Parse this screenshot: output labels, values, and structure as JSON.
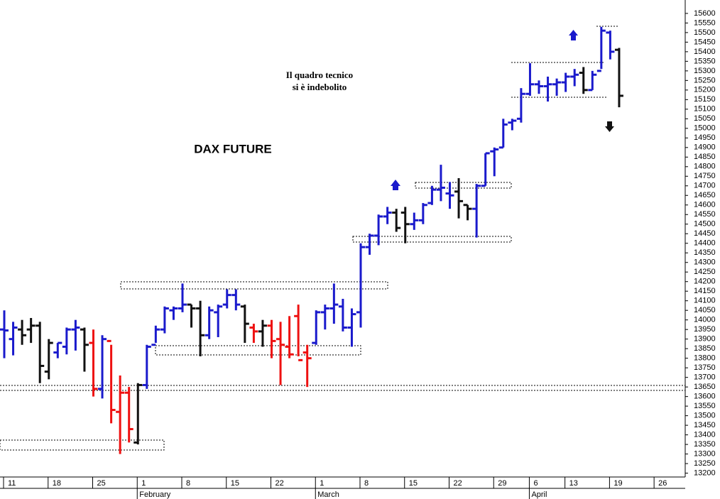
{
  "chart_data": {
    "type": "ohlc",
    "title": "DAX FUTURE",
    "annotation": [
      "Il quadro tecnico",
      "si è indebolito"
    ],
    "categories": [
      "11",
      null,
      null,
      null,
      null,
      "18",
      null,
      null,
      null,
      null,
      "25",
      null,
      null,
      null,
      null,
      "1",
      null,
      null,
      null,
      null,
      "8",
      null,
      null,
      null,
      null,
      "15",
      null,
      null,
      null,
      null,
      "22",
      null,
      null,
      null,
      null,
      "1",
      null,
      null,
      null,
      null,
      "8",
      null,
      null,
      null,
      null,
      "15",
      null,
      null,
      null,
      null,
      "22",
      null,
      null,
      null,
      null,
      "29",
      null,
      null,
      null,
      "6",
      null,
      null,
      null,
      "13",
      null,
      null,
      null,
      null,
      "19",
      null,
      null,
      null,
      null,
      "26",
      null,
      null,
      null,
      null
    ],
    "months": [
      "February",
      "March",
      "April"
    ],
    "open": [
      13950,
      13900,
      13950,
      13950,
      13970,
      13730,
      13830,
      13860,
      13950,
      13950,
      13880,
      13640,
      13890,
      13520,
      13620,
      13360,
      13660,
      13870,
      13950,
      14050,
      14060,
      14080,
      14060,
      13920,
      14040,
      14080,
      14130,
      14070,
      13960,
      13940,
      13970,
      13900,
      13860,
      14020,
      13830,
      13880,
      14040,
      14060,
      14070,
      13960,
      14040,
      14380,
      14440,
      14540,
      14560,
      14560,
      14500,
      14520,
      14610,
      14680,
      14660,
      14670,
      14600,
      14580,
      14700,
      14880,
      14900,
      15030,
      15050,
      15180,
      15230,
      15220,
      15230,
      15240,
      15270,
      15290,
      15200,
      15300,
      15500,
      15410,
      null,
      null,
      null,
      null,
      null,
      null,
      null,
      null
    ],
    "high": [
      14050,
      13990,
      14000,
      14010,
      13990,
      13900,
      13880,
      13960,
      14000,
      13960,
      13950,
      13920,
      13870,
      13710,
      13650,
      13670,
      13870,
      13970,
      14070,
      14070,
      14190,
      14080,
      14100,
      14070,
      14080,
      14160,
      14160,
      14080,
      13980,
      14000,
      14000,
      13990,
      14020,
      14080,
      13870,
      14050,
      14080,
      14190,
      14110,
      14060,
      14400,
      14450,
      14550,
      14590,
      14580,
      14590,
      14560,
      14610,
      14700,
      14810,
      14720,
      14740,
      14600,
      14710,
      14870,
      14900,
      15050,
      15050,
      15210,
      15340,
      15250,
      15270,
      15260,
      15290,
      15310,
      15320,
      15300,
      15530,
      15510,
      15420,
      null,
      null,
      null,
      null,
      null,
      null,
      null,
      null
    ],
    "low": [
      13800,
      13815,
      13870,
      13880,
      13670,
      13690,
      13800,
      13820,
      13840,
      13730,
      13600,
      13590,
      13460,
      13300,
      13360,
      13350,
      13640,
      13880,
      13930,
      14000,
      14040,
      13960,
      13810,
      13900,
      13910,
      14060,
      14050,
      13880,
      13880,
      13860,
      13800,
      13660,
      13800,
      13810,
      13650,
      13870,
      13950,
      13980,
      13940,
      13860,
      13960,
      14340,
      14390,
      14500,
      14460,
      14400,
      14470,
      14500,
      14600,
      14620,
      14580,
      14530,
      14520,
      14430,
      14700,
      14750,
      14900,
      14990,
      15030,
      15170,
      15180,
      15140,
      15170,
      15190,
      15220,
      15180,
      15200,
      15310,
      15360,
      15110,
      null,
      null,
      null,
      null,
      null,
      null,
      null,
      null
    ],
    "close": [
      13945,
      13960,
      13920,
      13970,
      13760,
      13880,
      13880,
      13950,
      13960,
      13870,
      13640,
      13900,
      13530,
      13620,
      13430,
      13660,
      13860,
      13950,
      14060,
      14060,
      14080,
      14060,
      13920,
      14050,
      14070,
      14130,
      14080,
      13980,
      13940,
      13970,
      13890,
      13870,
      13820,
      13790,
      13800,
      14040,
      14060,
      14080,
      13960,
      14030,
      14380,
      14440,
      14540,
      14560,
      14480,
      14500,
      14520,
      14600,
      14680,
      14690,
      14650,
      14620,
      14580,
      14700,
      14870,
      14890,
      15020,
      15040,
      15180,
      15230,
      15220,
      15230,
      15240,
      15270,
      15280,
      15200,
      15280,
      15510,
      15400,
      15170,
      null,
      null,
      null,
      null,
      null,
      null,
      null,
      null
    ],
    "colors": [
      "#1a1acc",
      "#1a1acc",
      "#111111",
      "#111111",
      "#111111",
      "#111111",
      "#1a1acc",
      "#1a1acc",
      "#1a1acc",
      "#111111",
      "#ee1111",
      "#1a1acc",
      "#ee1111",
      "#ee1111",
      "#ee1111",
      "#111111",
      "#1a1acc",
      "#1a1acc",
      "#1a1acc",
      "#1a1acc",
      "#1a1acc",
      "#111111",
      "#111111",
      "#1a1acc",
      "#1a1acc",
      "#1a1acc",
      "#1a1acc",
      "#111111",
      "#ee1111",
      "#111111",
      "#ee1111",
      "#ee1111",
      "#ee1111",
      "#ee1111",
      "#ee1111",
      "#1a1acc",
      "#1a1acc",
      "#1a1acc",
      "#1a1acc",
      "#1a1acc",
      "#1a1acc",
      "#1a1acc",
      "#1a1acc",
      "#1a1acc",
      "#111111",
      "#111111",
      "#1a1acc",
      "#1a1acc",
      "#1a1acc",
      "#1a1acc",
      "#1a1acc",
      "#111111",
      "#111111",
      "#1a1acc",
      "#1a1acc",
      "#1a1acc",
      "#1a1acc",
      "#1a1acc",
      "#1a1acc",
      "#1a1acc",
      "#1a1acc",
      "#1a1acc",
      "#1a1acc",
      "#1a1acc",
      "#1a1acc",
      "#111111",
      "#1a1acc",
      "#1a1acc",
      "#1a1acc",
      "#111111",
      null,
      null,
      null,
      null,
      null,
      null,
      null,
      null
    ],
    "ylim": [
      13180,
      15670
    ],
    "yticks": [
      13200,
      13250,
      13300,
      13350,
      13400,
      13450,
      13500,
      13550,
      13600,
      13650,
      13700,
      13750,
      13800,
      13850,
      13900,
      13950,
      14000,
      14050,
      14100,
      14150,
      14200,
      14250,
      14300,
      14350,
      14400,
      14450,
      14500,
      14550,
      14600,
      14650,
      14700,
      14750,
      14800,
      14850,
      14900,
      14950,
      15000,
      15050,
      15100,
      15150,
      15200,
      15250,
      15300,
      15350,
      15400,
      15450,
      15500,
      15550,
      15600
    ]
  }
}
